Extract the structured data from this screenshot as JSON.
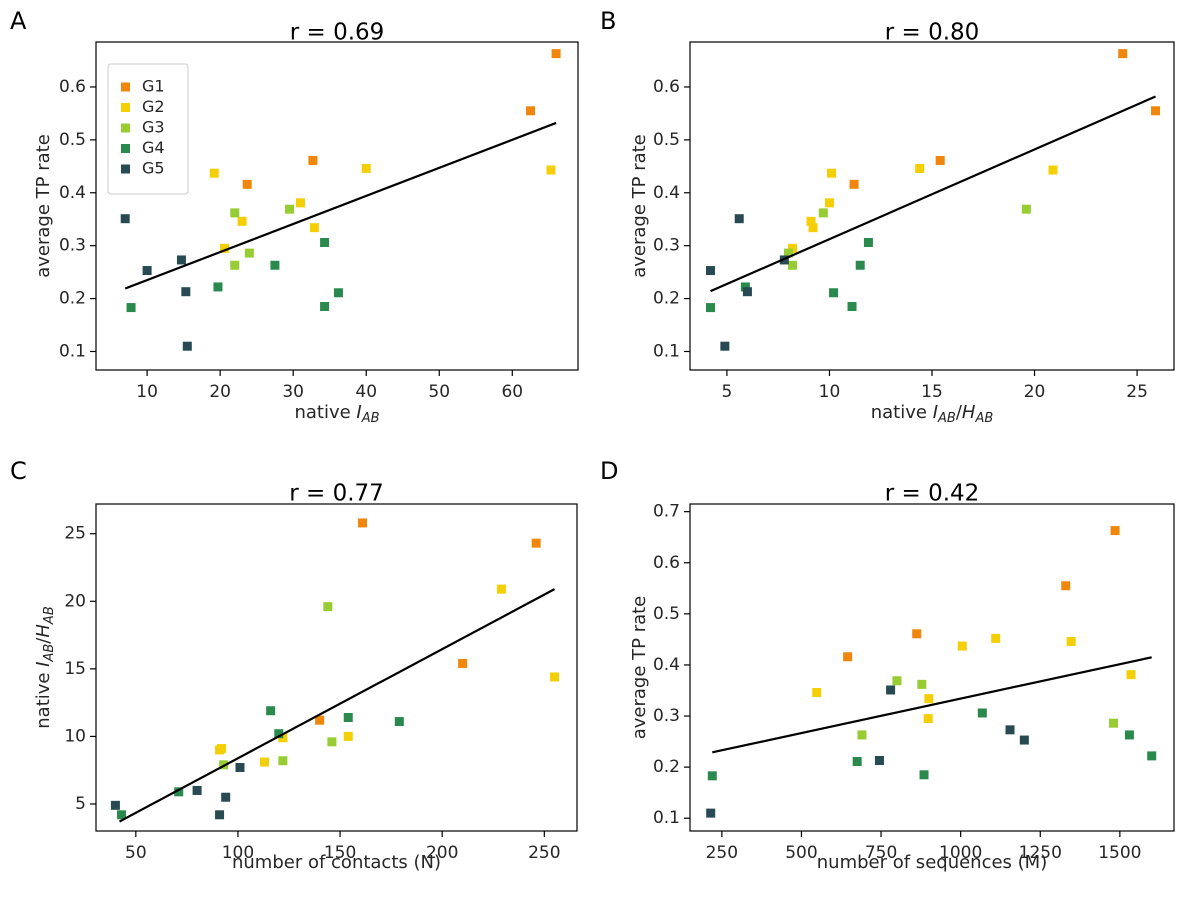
{
  "colors": {
    "G1": "#f0860c",
    "G2": "#f5cf05",
    "G3": "#97cd32",
    "G4": "#2a8a4d",
    "G5": "#274a53"
  },
  "legend": [
    "G1",
    "G2",
    "G3",
    "G4",
    "G5"
  ],
  "chart_data": [
    {
      "type": "scatter",
      "panel": "A",
      "title": "r = 0.69",
      "xlabel": "native ",
      "xlabel_var": "I",
      "xlabel_sub": "AB",
      "ylabel": "average TP rate",
      "xlim": [
        3,
        69
      ],
      "ylim": [
        0.065,
        0.685
      ],
      "xticks": [
        10,
        20,
        30,
        40,
        50,
        60
      ],
      "yticks": [
        0.1,
        0.2,
        0.3,
        0.4,
        0.5,
        0.6
      ],
      "ytick_format": "0.1",
      "fit": [
        [
          7,
          0.219
        ],
        [
          66,
          0.532
        ]
      ],
      "show_legend": true,
      "points": [
        {
          "g": "G1",
          "x": 66,
          "y": 0.663
        },
        {
          "g": "G1",
          "x": 62.5,
          "y": 0.555
        },
        {
          "g": "G1",
          "x": 32.7,
          "y": 0.461
        },
        {
          "g": "G1",
          "x": 23.7,
          "y": 0.416
        },
        {
          "g": "G2",
          "x": 65.3,
          "y": 0.443
        },
        {
          "g": "G2",
          "x": 40,
          "y": 0.446
        },
        {
          "g": "G2",
          "x": 19.2,
          "y": 0.437
        },
        {
          "g": "G2",
          "x": 31,
          "y": 0.381
        },
        {
          "g": "G2",
          "x": 23,
          "y": 0.346
        },
        {
          "g": "G2",
          "x": 32.9,
          "y": 0.334
        },
        {
          "g": "G2",
          "x": 20.6,
          "y": 0.295
        },
        {
          "g": "G3",
          "x": 22,
          "y": 0.362
        },
        {
          "g": "G3",
          "x": 29.5,
          "y": 0.369
        },
        {
          "g": "G3",
          "x": 24,
          "y": 0.286
        },
        {
          "g": "G3",
          "x": 22,
          "y": 0.263
        },
        {
          "g": "G4",
          "x": 34.3,
          "y": 0.306
        },
        {
          "g": "G4",
          "x": 27.5,
          "y": 0.263
        },
        {
          "g": "G4",
          "x": 19.7,
          "y": 0.222
        },
        {
          "g": "G4",
          "x": 36.2,
          "y": 0.211
        },
        {
          "g": "G4",
          "x": 34.3,
          "y": 0.185
        },
        {
          "g": "G4",
          "x": 7.8,
          "y": 0.183
        },
        {
          "g": "G5",
          "x": 7,
          "y": 0.351
        },
        {
          "g": "G5",
          "x": 14.7,
          "y": 0.273
        },
        {
          "g": "G5",
          "x": 10,
          "y": 0.253
        },
        {
          "g": "G5",
          "x": 15.3,
          "y": 0.213
        },
        {
          "g": "G5",
          "x": 15.5,
          "y": 0.11
        }
      ]
    },
    {
      "type": "scatter",
      "panel": "B",
      "title": "r = 0.80",
      "xlabel": "native ",
      "xlabel_var": "I",
      "xlabel_sub": "AB",
      "xlabel_sep": "/",
      "xlabel_var2": "H",
      "xlabel_sub2": "AB",
      "ylabel": "average TP rate",
      "xlim": [
        3.2,
        26.8
      ],
      "ylim": [
        0.065,
        0.685
      ],
      "xticks": [
        5,
        10,
        15,
        20,
        25
      ],
      "yticks": [
        0.1,
        0.2,
        0.3,
        0.4,
        0.5,
        0.6
      ],
      "ytick_format": "0.1",
      "fit": [
        [
          4.2,
          0.214
        ],
        [
          25.9,
          0.582
        ]
      ],
      "show_legend": false,
      "points": [
        {
          "g": "G1",
          "x": 24.3,
          "y": 0.663
        },
        {
          "g": "G1",
          "x": 25.9,
          "y": 0.555
        },
        {
          "g": "G1",
          "x": 15.4,
          "y": 0.461
        },
        {
          "g": "G1",
          "x": 11.2,
          "y": 0.416
        },
        {
          "g": "G2",
          "x": 20.9,
          "y": 0.443
        },
        {
          "g": "G2",
          "x": 14.4,
          "y": 0.446
        },
        {
          "g": "G2",
          "x": 10.1,
          "y": 0.437
        },
        {
          "g": "G2",
          "x": 10,
          "y": 0.381
        },
        {
          "g": "G2",
          "x": 9.1,
          "y": 0.346
        },
        {
          "g": "G2",
          "x": 9.2,
          "y": 0.334
        },
        {
          "g": "G2",
          "x": 8.2,
          "y": 0.295
        },
        {
          "g": "G3",
          "x": 9.7,
          "y": 0.362
        },
        {
          "g": "G3",
          "x": 19.6,
          "y": 0.369
        },
        {
          "g": "G3",
          "x": 8,
          "y": 0.286
        },
        {
          "g": "G3",
          "x": 8.2,
          "y": 0.263
        },
        {
          "g": "G4",
          "x": 11.9,
          "y": 0.306
        },
        {
          "g": "G4",
          "x": 11.5,
          "y": 0.263
        },
        {
          "g": "G4",
          "x": 5.9,
          "y": 0.222
        },
        {
          "g": "G4",
          "x": 10.2,
          "y": 0.211
        },
        {
          "g": "G4",
          "x": 11.1,
          "y": 0.185
        },
        {
          "g": "G4",
          "x": 4.2,
          "y": 0.183
        },
        {
          "g": "G5",
          "x": 5.6,
          "y": 0.351
        },
        {
          "g": "G5",
          "x": 7.8,
          "y": 0.273
        },
        {
          "g": "G5",
          "x": 4.2,
          "y": 0.253
        },
        {
          "g": "G5",
          "x": 6,
          "y": 0.213
        },
        {
          "g": "G5",
          "x": 4.9,
          "y": 0.11
        }
      ]
    },
    {
      "type": "scatter",
      "panel": "C",
      "title": "r = 0.77",
      "xlabel": "number of contacts (N)",
      "ylabel": "native ",
      "ylabel_var": "I",
      "ylabel_sub": "AB",
      "ylabel_sep": "/",
      "ylabel_var2": "H",
      "ylabel_sub2": "AB",
      "xlim": [
        30.5,
        266
      ],
      "ylim": [
        3.0,
        27.2
      ],
      "xticks": [
        50,
        100,
        150,
        200,
        250
      ],
      "yticks": [
        5,
        10,
        15,
        20,
        25
      ],
      "ytick_format": "0",
      "fit": [
        [
          42,
          3.7
        ],
        [
          255,
          20.9
        ]
      ],
      "show_legend": false,
      "points": [
        {
          "g": "G1",
          "x": 161,
          "y": 25.8
        },
        {
          "g": "G1",
          "x": 246,
          "y": 24.3
        },
        {
          "g": "G1",
          "x": 210,
          "y": 15.4
        },
        {
          "g": "G1",
          "x": 140,
          "y": 11.2
        },
        {
          "g": "G2",
          "x": 229,
          "y": 20.9
        },
        {
          "g": "G2",
          "x": 255,
          "y": 14.4
        },
        {
          "g": "G2",
          "x": 154,
          "y": 10.0
        },
        {
          "g": "G2",
          "x": 122,
          "y": 9.9
        },
        {
          "g": "G2",
          "x": 92,
          "y": 9.1
        },
        {
          "g": "G2",
          "x": 91,
          "y": 9.0
        },
        {
          "g": "G2",
          "x": 113,
          "y": 8.1
        },
        {
          "g": "G3",
          "x": 144,
          "y": 19.6
        },
        {
          "g": "G3",
          "x": 146,
          "y": 9.6
        },
        {
          "g": "G3",
          "x": 122,
          "y": 8.2
        },
        {
          "g": "G3",
          "x": 93,
          "y": 7.9
        },
        {
          "g": "G4",
          "x": 116,
          "y": 11.9
        },
        {
          "g": "G4",
          "x": 154,
          "y": 11.4
        },
        {
          "g": "G4",
          "x": 179,
          "y": 11.1
        },
        {
          "g": "G4",
          "x": 120,
          "y": 10.2
        },
        {
          "g": "G4",
          "x": 71,
          "y": 5.9
        },
        {
          "g": "G4",
          "x": 43,
          "y": 4.2
        },
        {
          "g": "G5",
          "x": 101,
          "y": 7.7
        },
        {
          "g": "G5",
          "x": 80,
          "y": 6.0
        },
        {
          "g": "G5",
          "x": 94,
          "y": 5.5
        },
        {
          "g": "G5",
          "x": 40,
          "y": 4.9
        },
        {
          "g": "G5",
          "x": 91,
          "y": 4.2
        }
      ]
    },
    {
      "type": "scatter",
      "panel": "D",
      "title": "r = 0.42",
      "xlabel": "number of sequences (M)",
      "ylabel": "average TP rate",
      "xlim": [
        150,
        1670
      ],
      "ylim": [
        0.075,
        0.715
      ],
      "xticks": [
        250,
        500,
        750,
        1000,
        1250,
        1500
      ],
      "yticks": [
        0.1,
        0.2,
        0.3,
        0.4,
        0.5,
        0.6,
        0.7
      ],
      "ytick_format": "0.1",
      "fit": [
        [
          220,
          0.229
        ],
        [
          1600,
          0.415
        ]
      ],
      "show_legend": false,
      "points": [
        {
          "g": "G1",
          "x": 1485,
          "y": 0.663
        },
        {
          "g": "G1",
          "x": 1330,
          "y": 0.555
        },
        {
          "g": "G1",
          "x": 862,
          "y": 0.461
        },
        {
          "g": "G1",
          "x": 645,
          "y": 0.416
        },
        {
          "g": "G2",
          "x": 1110,
          "y": 0.452
        },
        {
          "g": "G2",
          "x": 1347,
          "y": 0.446
        },
        {
          "g": "G2",
          "x": 1005,
          "y": 0.437
        },
        {
          "g": "G2",
          "x": 1535,
          "y": 0.381
        },
        {
          "g": "G2",
          "x": 548,
          "y": 0.346
        },
        {
          "g": "G2",
          "x": 900,
          "y": 0.334
        },
        {
          "g": "G2",
          "x": 898,
          "y": 0.295
        },
        {
          "g": "G3",
          "x": 800,
          "y": 0.369
        },
        {
          "g": "G3",
          "x": 878,
          "y": 0.362
        },
        {
          "g": "G3",
          "x": 1480,
          "y": 0.286
        },
        {
          "g": "G3",
          "x": 690,
          "y": 0.263
        },
        {
          "g": "G4",
          "x": 1068,
          "y": 0.306
        },
        {
          "g": "G4",
          "x": 1530,
          "y": 0.263
        },
        {
          "g": "G4",
          "x": 1600,
          "y": 0.222
        },
        {
          "g": "G4",
          "x": 675,
          "y": 0.211
        },
        {
          "g": "G4",
          "x": 885,
          "y": 0.185
        },
        {
          "g": "G4",
          "x": 220,
          "y": 0.183
        },
        {
          "g": "G5",
          "x": 780,
          "y": 0.351
        },
        {
          "g": "G5",
          "x": 1155,
          "y": 0.273
        },
        {
          "g": "G5",
          "x": 1200,
          "y": 0.253
        },
        {
          "g": "G5",
          "x": 745,
          "y": 0.213
        },
        {
          "g": "G5",
          "x": 215,
          "y": 0.11
        }
      ]
    }
  ]
}
